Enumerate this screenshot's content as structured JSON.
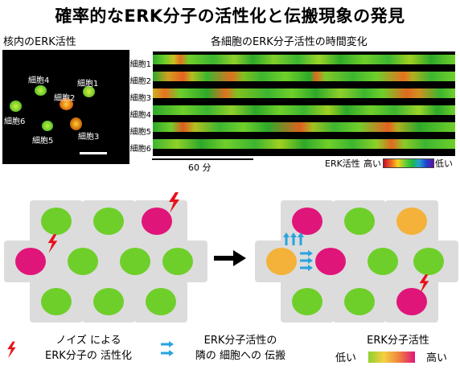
{
  "title": "確率的なERK分子の活性化と伝搬現象の発見",
  "micrograph": {
    "heading": "核内のERK活性",
    "cells": [
      {
        "label": "細胞1"
      },
      {
        "label": "細胞2"
      },
      {
        "label": "細胞3"
      },
      {
        "label": "細胞4"
      },
      {
        "label": "細胞5"
      },
      {
        "label": "細胞6"
      }
    ]
  },
  "kymograph": {
    "heading": "各細胞のERK分子活性の時間変化",
    "rows": [
      "細胞1",
      "細胞2",
      "細胞3",
      "細胞4",
      "細胞5",
      "細胞6"
    ],
    "time_label": "60 分",
    "scale_label": "ERK活性",
    "scale_high": "高い",
    "scale_low": "低い"
  },
  "colors": {
    "green": "#6fcf2a",
    "magenta": "#e0157a",
    "orange": "#f4b23a",
    "cell_gray": "#dcdcdc",
    "arrow_blue": "#29a3e0",
    "lightning_red": "#e8101a"
  },
  "legend": {
    "noise_line1": "ノイズ による",
    "noise_line2": "ERK分子の 活性化",
    "propagation_line1": "ERK分子活性の",
    "propagation_line2": "隣の 細胞への 伝搬",
    "activity_title": "ERK分子活性",
    "activity_low": "低い",
    "activity_high": "高い"
  }
}
